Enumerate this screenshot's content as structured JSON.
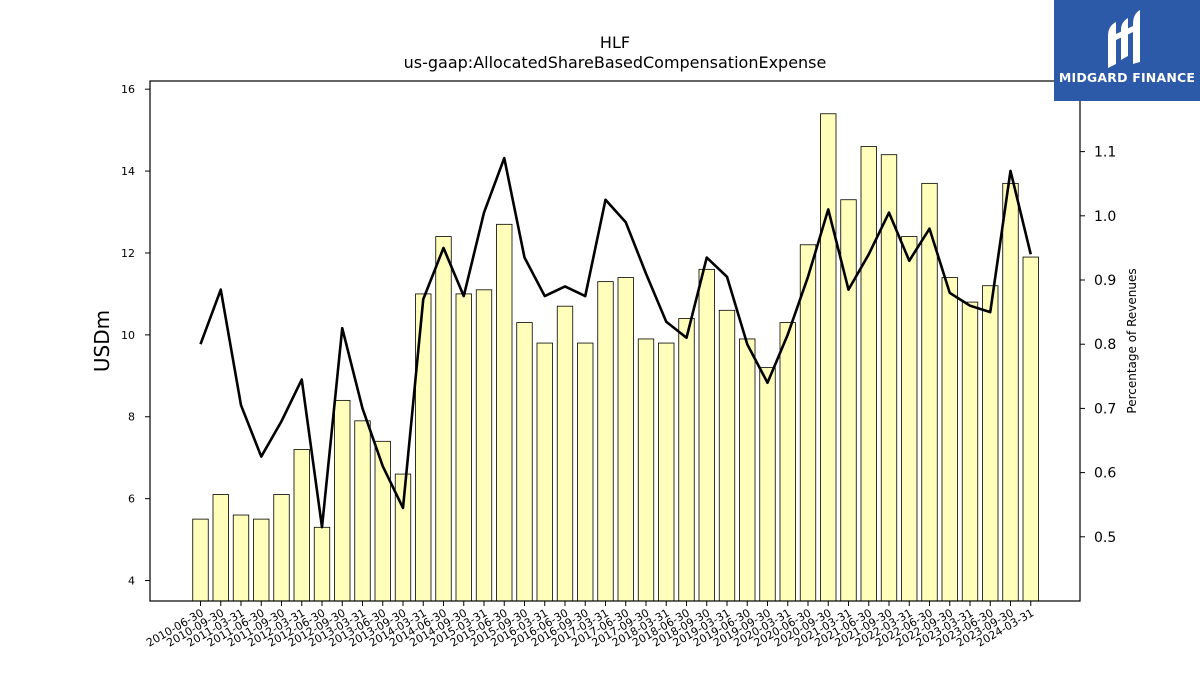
{
  "logo": {
    "text": "MIDGARD FINANCE",
    "icon": "midgard-logo-icon",
    "background": "#2d5aa8"
  },
  "chart_data": {
    "type": "bar",
    "title": "HLF",
    "subtitle": "us-gaap:AllocatedShareBasedCompensationExpense",
    "xlabel": "",
    "ylabel": "USDm",
    "y2label": "Percentage of Revenues",
    "ylim": [
      3.5,
      16.2
    ],
    "y2lim": [
      0.4,
      1.21
    ],
    "yticks": [
      4,
      6,
      8,
      10,
      12,
      14,
      16
    ],
    "y2ticks": [
      0.5,
      0.6,
      0.7,
      0.8,
      0.9,
      1.0,
      1.1
    ],
    "y2tick_labels": [
      "0.5",
      "0.6",
      "0.7",
      "0.8",
      "0.9",
      "1.0",
      "1.1"
    ],
    "grid": false,
    "bar_color": "#ffffbb",
    "line_color": "#000000",
    "categories": [
      "2010-06-30",
      "2010-09-30",
      "2011-03-31",
      "2011-06-30",
      "2011-09-30",
      "2012-03-31",
      "2012-06-30",
      "2012-09-30",
      "2013-03-31",
      "2013-06-30",
      "2013-09-30",
      "2014-03-31",
      "2014-06-30",
      "2014-09-30",
      "2015-03-31",
      "2015-06-30",
      "2015-09-30",
      "2016-03-31",
      "2016-06-30",
      "2016-09-30",
      "2017-03-31",
      "2017-06-30",
      "2017-09-30",
      "2018-03-31",
      "2018-06-30",
      "2018-09-30",
      "2019-03-31",
      "2019-06-30",
      "2019-09-30",
      "2020-03-31",
      "2020-06-30",
      "2020-09-30",
      "2021-03-31",
      "2021-06-30",
      "2021-09-30",
      "2022-03-31",
      "2022-06-30",
      "2022-09-30",
      "2023-03-31",
      "2023-06-30",
      "2023-09-30",
      "2024-03-31"
    ],
    "series": [
      {
        "type": "bar",
        "axis": "left",
        "values": [
          5.5,
          6.1,
          5.6,
          5.5,
          6.1,
          7.2,
          5.3,
          8.4,
          7.9,
          7.4,
          6.6,
          11.0,
          12.4,
          11.0,
          11.1,
          12.7,
          10.3,
          9.8,
          10.7,
          9.8,
          11.3,
          11.4,
          9.9,
          9.8,
          10.4,
          11.6,
          10.6,
          9.9,
          9.2,
          10.3,
          12.2,
          15.4,
          13.3,
          14.6,
          14.4,
          12.4,
          13.7,
          11.4,
          10.8,
          11.2,
          13.7,
          11.9
        ]
      },
      {
        "type": "line",
        "axis": "right",
        "values": [
          0.8,
          0.885,
          0.705,
          0.625,
          0.68,
          0.745,
          0.515,
          0.825,
          0.7,
          0.61,
          0.545,
          0.87,
          0.95,
          0.875,
          1.005,
          1.09,
          0.935,
          0.875,
          0.89,
          0.875,
          1.025,
          0.99,
          0.91,
          0.835,
          0.81,
          0.935,
          0.905,
          0.8,
          0.74,
          0.815,
          0.905,
          1.01,
          0.885,
          0.94,
          1.005,
          0.93,
          0.98,
          0.88,
          0.86,
          0.85,
          1.07,
          0.94
        ]
      }
    ]
  }
}
